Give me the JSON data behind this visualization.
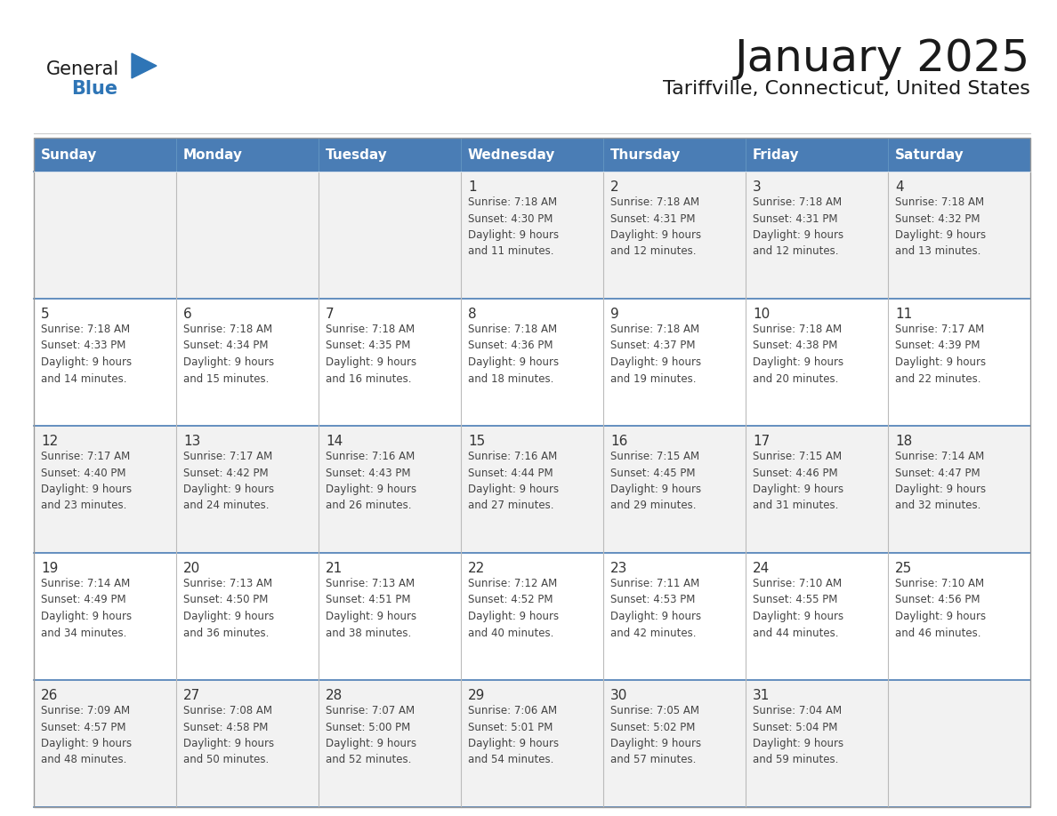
{
  "title": "January 2025",
  "subtitle": "Tariffville, Connecticut, United States",
  "days_of_week": [
    "Sunday",
    "Monday",
    "Tuesday",
    "Wednesday",
    "Thursday",
    "Friday",
    "Saturday"
  ],
  "header_bg": "#4A7DB5",
  "header_text": "#FFFFFF",
  "row_bg_odd": "#F2F2F2",
  "row_bg_even": "#FFFFFF",
  "cell_text_color": "#444444",
  "day_num_color": "#333333",
  "row_sep_color": "#4A7DB5",
  "title_color": "#1a1a1a",
  "subtitle_color": "#1a1a1a",
  "logo_general_color": "#1a1a1a",
  "logo_blue_color": "#2E75B6",
  "calendar_data": [
    [
      "",
      "",
      "",
      "1\nSunrise: 7:18 AM\nSunset: 4:30 PM\nDaylight: 9 hours\nand 11 minutes.",
      "2\nSunrise: 7:18 AM\nSunset: 4:31 PM\nDaylight: 9 hours\nand 12 minutes.",
      "3\nSunrise: 7:18 AM\nSunset: 4:31 PM\nDaylight: 9 hours\nand 12 minutes.",
      "4\nSunrise: 7:18 AM\nSunset: 4:32 PM\nDaylight: 9 hours\nand 13 minutes."
    ],
    [
      "5\nSunrise: 7:18 AM\nSunset: 4:33 PM\nDaylight: 9 hours\nand 14 minutes.",
      "6\nSunrise: 7:18 AM\nSunset: 4:34 PM\nDaylight: 9 hours\nand 15 minutes.",
      "7\nSunrise: 7:18 AM\nSunset: 4:35 PM\nDaylight: 9 hours\nand 16 minutes.",
      "8\nSunrise: 7:18 AM\nSunset: 4:36 PM\nDaylight: 9 hours\nand 18 minutes.",
      "9\nSunrise: 7:18 AM\nSunset: 4:37 PM\nDaylight: 9 hours\nand 19 minutes.",
      "10\nSunrise: 7:18 AM\nSunset: 4:38 PM\nDaylight: 9 hours\nand 20 minutes.",
      "11\nSunrise: 7:17 AM\nSunset: 4:39 PM\nDaylight: 9 hours\nand 22 minutes."
    ],
    [
      "12\nSunrise: 7:17 AM\nSunset: 4:40 PM\nDaylight: 9 hours\nand 23 minutes.",
      "13\nSunrise: 7:17 AM\nSunset: 4:42 PM\nDaylight: 9 hours\nand 24 minutes.",
      "14\nSunrise: 7:16 AM\nSunset: 4:43 PM\nDaylight: 9 hours\nand 26 minutes.",
      "15\nSunrise: 7:16 AM\nSunset: 4:44 PM\nDaylight: 9 hours\nand 27 minutes.",
      "16\nSunrise: 7:15 AM\nSunset: 4:45 PM\nDaylight: 9 hours\nand 29 minutes.",
      "17\nSunrise: 7:15 AM\nSunset: 4:46 PM\nDaylight: 9 hours\nand 31 minutes.",
      "18\nSunrise: 7:14 AM\nSunset: 4:47 PM\nDaylight: 9 hours\nand 32 minutes."
    ],
    [
      "19\nSunrise: 7:14 AM\nSunset: 4:49 PM\nDaylight: 9 hours\nand 34 minutes.",
      "20\nSunrise: 7:13 AM\nSunset: 4:50 PM\nDaylight: 9 hours\nand 36 minutes.",
      "21\nSunrise: 7:13 AM\nSunset: 4:51 PM\nDaylight: 9 hours\nand 38 minutes.",
      "22\nSunrise: 7:12 AM\nSunset: 4:52 PM\nDaylight: 9 hours\nand 40 minutes.",
      "23\nSunrise: 7:11 AM\nSunset: 4:53 PM\nDaylight: 9 hours\nand 42 minutes.",
      "24\nSunrise: 7:10 AM\nSunset: 4:55 PM\nDaylight: 9 hours\nand 44 minutes.",
      "25\nSunrise: 7:10 AM\nSunset: 4:56 PM\nDaylight: 9 hours\nand 46 minutes."
    ],
    [
      "26\nSunrise: 7:09 AM\nSunset: 4:57 PM\nDaylight: 9 hours\nand 48 minutes.",
      "27\nSunrise: 7:08 AM\nSunset: 4:58 PM\nDaylight: 9 hours\nand 50 minutes.",
      "28\nSunrise: 7:07 AM\nSunset: 5:00 PM\nDaylight: 9 hours\nand 52 minutes.",
      "29\nSunrise: 7:06 AM\nSunset: 5:01 PM\nDaylight: 9 hours\nand 54 minutes.",
      "30\nSunrise: 7:05 AM\nSunset: 5:02 PM\nDaylight: 9 hours\nand 57 minutes.",
      "31\nSunrise: 7:04 AM\nSunset: 5:04 PM\nDaylight: 9 hours\nand 59 minutes.",
      ""
    ]
  ]
}
